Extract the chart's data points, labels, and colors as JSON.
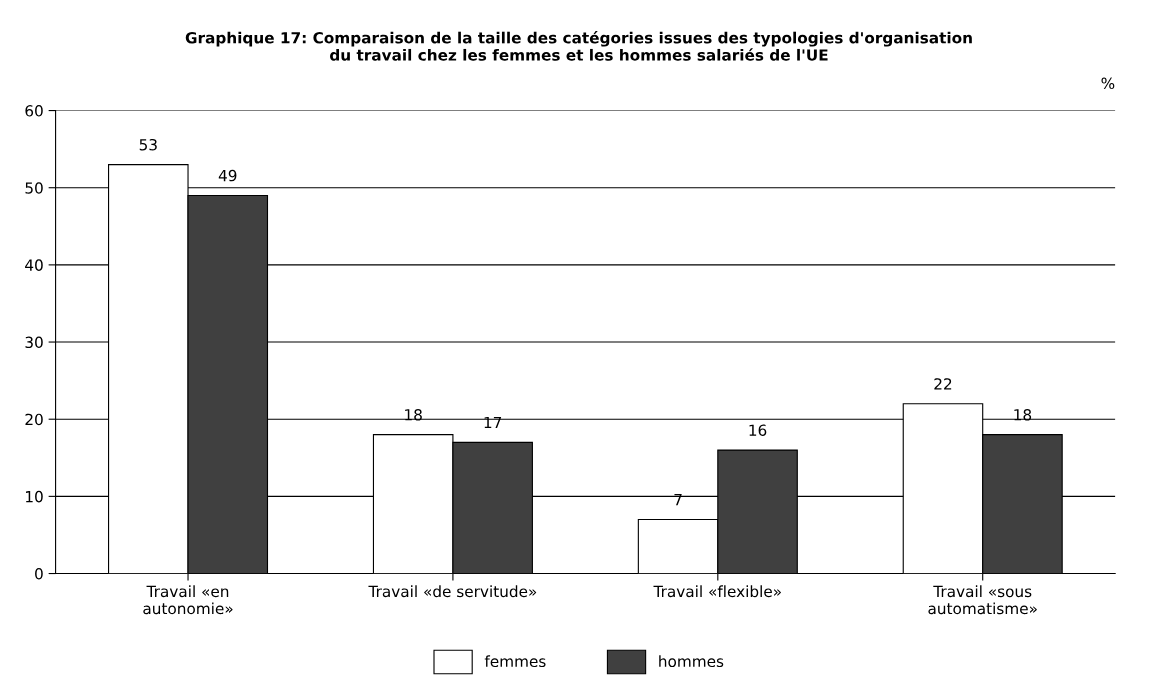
{
  "chart_data": {
    "type": "bar",
    "title": "Graphique 17: Comparaison de la taille des catégories issues des typologies d'organisation\ndu travail chez les femmes et les hommes salariés de l'UE",
    "ylabel": "%",
    "categories": [
      "Travail «en\nautonomie»",
      "Travail «de servitude»",
      "Travail «flexible»",
      "Travail «sous\nautomatisme»"
    ],
    "series": [
      {
        "name": "femmes",
        "color": "#ffffff",
        "values": [
          53,
          18,
          7,
          22
        ]
      },
      {
        "name": "hommes",
        "color": "#404040",
        "values": [
          49,
          17,
          16,
          18
        ]
      }
    ],
    "ylim": [
      0,
      60
    ],
    "yticks": [
      0,
      10,
      20,
      30,
      40,
      50,
      60
    ],
    "grid": "y",
    "legend": "bottom",
    "data_labels": true
  }
}
